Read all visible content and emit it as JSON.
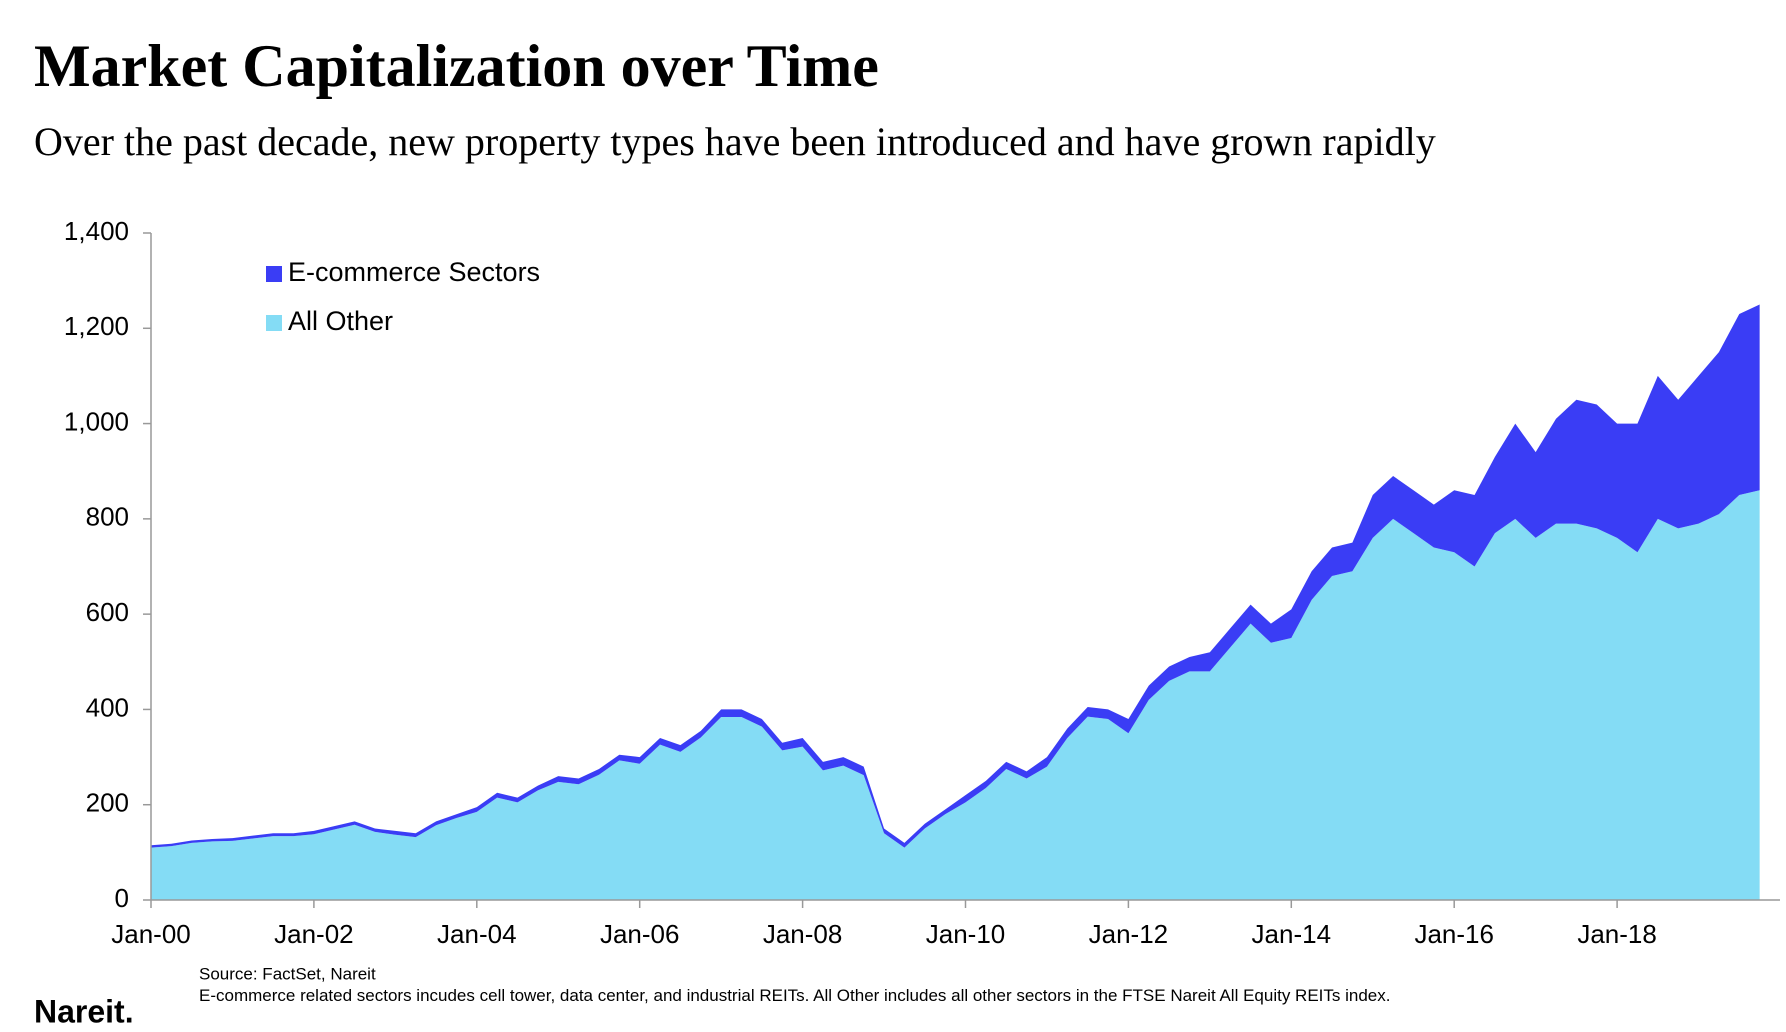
{
  "chart_data": {
    "type": "stacked_area",
    "title": "Market Capitalization over Time",
    "subtitle": "Over the past decade, new property types have been introduced and have grown rapidly",
    "source": "Source: FactSet, Nareit",
    "note": "E-commerce related sectors incudes cell tower, data center, and industrial REITs. All Other includes all other sectors in the FTSE Nareit All Equity REITs index.",
    "logo": "Nareit.",
    "categories": [
      "Jan-00",
      null,
      null,
      null,
      null,
      null,
      null,
      null,
      "Jan-02",
      null,
      null,
      null,
      null,
      null,
      null,
      null,
      "Jan-04",
      null,
      null,
      null,
      null,
      null,
      null,
      null,
      "Jan-06",
      null,
      null,
      null,
      null,
      null,
      null,
      null,
      "Jan-08",
      null,
      null,
      null,
      null,
      null,
      null,
      null,
      "Jan-10",
      null,
      null,
      null,
      null,
      null,
      null,
      null,
      "Jan-12",
      null,
      null,
      null,
      null,
      null,
      null,
      null,
      "Jan-14",
      null,
      null,
      null,
      null,
      null,
      null,
      null,
      "Jan-16",
      null,
      null,
      null,
      null,
      null,
      null,
      null,
      "Jan-18",
      null,
      null,
      null,
      null,
      null,
      null,
      null
    ],
    "series": [
      {
        "name": "All Other",
        "color": "#84dcf5",
        "values": [
          110,
          113,
          120,
          123,
          124,
          129,
          134,
          134,
          138,
          148,
          158,
          143,
          137,
          132,
          157,
          172,
          185,
          215,
          205,
          230,
          248,
          243,
          263,
          293,
          286,
          326,
          311,
          341,
          384,
          384,
          364,
          314,
          322,
          272,
          282,
          262,
          140,
          110,
          150,
          180,
          205,
          235,
          275,
          255,
          280,
          340,
          385,
          380,
          350,
          420,
          460,
          480,
          480,
          530,
          580,
          540,
          550,
          630,
          680,
          690,
          760,
          800,
          770,
          740,
          730,
          700,
          770,
          800,
          760,
          790,
          790,
          780,
          760,
          730,
          800,
          780,
          790,
          810,
          850,
          860
        ]
      },
      {
        "name": "E-commerce Sectors",
        "color": "#3a3df5",
        "values": [
          5,
          5,
          5,
          5,
          6,
          6,
          6,
          6,
          7,
          7,
          7,
          7,
          8,
          8,
          8,
          8,
          10,
          10,
          10,
          10,
          12,
          12,
          12,
          12,
          14,
          14,
          14,
          14,
          16,
          16,
          16,
          16,
          18,
          18,
          18,
          18,
          10,
          10,
          10,
          10,
          15,
          15,
          15,
          15,
          20,
          20,
          20,
          20,
          30,
          30,
          30,
          30,
          40,
          40,
          40,
          40,
          60,
          60,
          60,
          60,
          90,
          90,
          90,
          90,
          130,
          150,
          160,
          200,
          180,
          220,
          260,
          260,
          240,
          270,
          300,
          270,
          310,
          340,
          380,
          390
        ]
      }
    ],
    "ylim": [
      0,
      1400
    ],
    "yticks": [
      0,
      200,
      400,
      600,
      800,
      {
        "value": 1000,
        "label": "1,000"
      },
      {
        "value": 1200,
        "label": "1,200"
      },
      {
        "value": 1400,
        "label": "1,400"
      }
    ]
  }
}
